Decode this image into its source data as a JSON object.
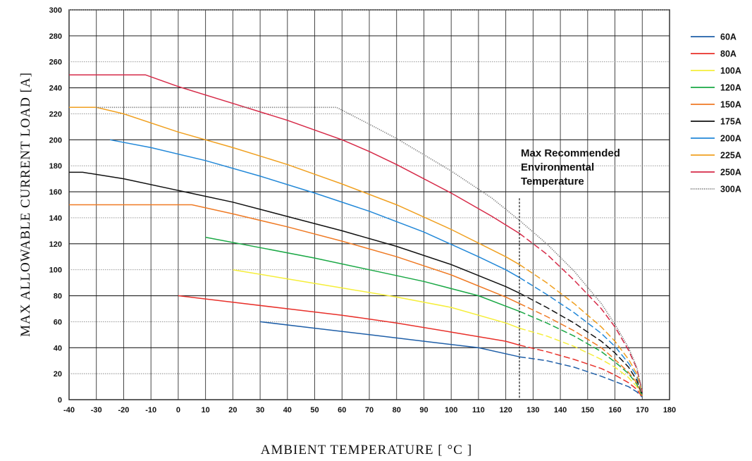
{
  "chart_data": {
    "type": "line",
    "title": "",
    "xlabel_prefix": "AMBIENT TEMPERATURE [",
    "xlabel_unit": "°C",
    "xlabel_suffix": "]",
    "ylabel": "MAX ALLOWABLE CURRENT LOAD [A]",
    "xlim": [
      -40,
      180
    ],
    "ylim": [
      0,
      300
    ],
    "x_ticks": [
      -40,
      -30,
      -20,
      -10,
      0,
      10,
      20,
      30,
      40,
      50,
      60,
      70,
      80,
      90,
      100,
      110,
      120,
      130,
      140,
      150,
      160,
      170,
      180
    ],
    "x_tick_labels": [
      "-40",
      "-30",
      "-20",
      "-10",
      "0",
      "10",
      "20",
      "30",
      "40",
      "50",
      "60",
      "70",
      "80",
      "90",
      "100",
      "110",
      "120",
      "130",
      "140",
      "150",
      "160",
      "170",
      "180"
    ],
    "y_ticks": [
      0,
      20,
      40,
      60,
      80,
      100,
      120,
      140,
      160,
      180,
      200,
      220,
      240,
      260,
      280,
      300
    ],
    "y_tick_labels": [
      "0",
      "20",
      "40",
      "60",
      "80",
      "100",
      "120",
      "140",
      "160",
      "180",
      "200",
      "220",
      "240",
      "260",
      "280",
      "300"
    ],
    "grid": true,
    "legend_position": "right",
    "annotation": {
      "lines": [
        "Max Recommended",
        "Environmental",
        "Temperature"
      ],
      "x": 125,
      "y_top": 155
    },
    "series": [
      {
        "name": "60A",
        "color": "#1f5fa8",
        "style": "solid",
        "x": [
          30,
          50,
          70,
          90,
          110,
          125,
          135,
          145,
          155,
          160,
          165,
          168,
          170
        ],
        "y": [
          60,
          55,
          50,
          45,
          40,
          33,
          30,
          25,
          18,
          14,
          10,
          6,
          2
        ]
      },
      {
        "name": "80A",
        "color": "#e8302a",
        "style": "solid",
        "x": [
          0,
          20,
          40,
          60,
          80,
          100,
          120,
          125,
          135,
          145,
          155,
          160,
          165,
          168,
          170
        ],
        "y": [
          80,
          75,
          70,
          65,
          59,
          52,
          45,
          42,
          37,
          31,
          24,
          19,
          13,
          8,
          2
        ]
      },
      {
        "name": "100A",
        "color": "#f5ee3a",
        "style": "solid",
        "x": [
          20,
          40,
          60,
          80,
          100,
          120,
          125,
          135,
          145,
          155,
          160,
          165,
          168,
          170
        ],
        "y": [
          100,
          93,
          86,
          79,
          71,
          59,
          55,
          49,
          41,
          31,
          25,
          17,
          10,
          3
        ]
      },
      {
        "name": "120A",
        "color": "#1aa845",
        "style": "solid",
        "x": [
          10,
          30,
          50,
          70,
          90,
          110,
          120,
          125,
          135,
          145,
          155,
          160,
          165,
          168,
          170
        ],
        "y": [
          125,
          117,
          109,
          100,
          91,
          80,
          72,
          68,
          59,
          49,
          37,
          29,
          20,
          12,
          3
        ]
      },
      {
        "name": "150A",
        "color": "#ef7a24",
        "style": "solid",
        "x": [
          -40,
          0,
          5,
          20,
          40,
          60,
          80,
          100,
          120,
          125,
          135,
          145,
          155,
          160,
          165,
          168,
          170
        ],
        "y": [
          150,
          150,
          150,
          143,
          133,
          122,
          110,
          96,
          79,
          74,
          64,
          53,
          40,
          31,
          21,
          13,
          3
        ]
      },
      {
        "name": "175A",
        "color": "#111111",
        "style": "solid",
        "x": [
          -40,
          -35,
          -20,
          0,
          20,
          40,
          60,
          80,
          100,
          120,
          125,
          135,
          145,
          155,
          160,
          165,
          168,
          170
        ],
        "y": [
          175,
          175,
          170,
          161,
          152,
          141,
          130,
          118,
          104,
          87,
          82,
          71,
          59,
          45,
          36,
          25,
          15,
          4
        ]
      },
      {
        "name": "200A",
        "color": "#2288d8",
        "style": "solid",
        "x": [
          -25,
          -10,
          10,
          30,
          50,
          70,
          90,
          110,
          120,
          125,
          135,
          145,
          155,
          160,
          165,
          168,
          170
        ],
        "y": [
          200,
          194,
          184,
          172,
          159,
          145,
          129,
          110,
          100,
          94,
          81,
          67,
          51,
          41,
          28,
          18,
          4
        ]
      },
      {
        "name": "225A",
        "color": "#f0a020",
        "style": "solid",
        "x": [
          -40,
          -30,
          -20,
          0,
          20,
          40,
          60,
          80,
          100,
          120,
          125,
          135,
          145,
          155,
          160,
          165,
          168,
          170
        ],
        "y": [
          225,
          225,
          220,
          206,
          194,
          181,
          166,
          150,
          131,
          110,
          104,
          90,
          74,
          56,
          45,
          31,
          20,
          5
        ]
      },
      {
        "name": "250A",
        "color": "#d62a48",
        "style": "solid",
        "x": [
          -40,
          -12,
          0,
          20,
          40,
          60,
          70,
          80,
          100,
          115,
          125,
          135,
          145,
          155,
          160,
          165,
          168,
          170
        ],
        "y": [
          250,
          250,
          241,
          228,
          215,
          200,
          191,
          181,
          159,
          141,
          128,
          112,
          92,
          70,
          56,
          38,
          24,
          6
        ]
      },
      {
        "name": "300A",
        "color": "#777777",
        "style": "dotted",
        "x": [
          -30,
          0,
          30,
          58,
          70,
          80,
          100,
          115,
          125,
          135,
          145,
          155,
          160,
          165,
          168,
          170
        ],
        "y": [
          225,
          225,
          225,
          225,
          212,
          201,
          176,
          155,
          138,
          120,
          99,
          74,
          58,
          40,
          25,
          6
        ]
      }
    ]
  }
}
